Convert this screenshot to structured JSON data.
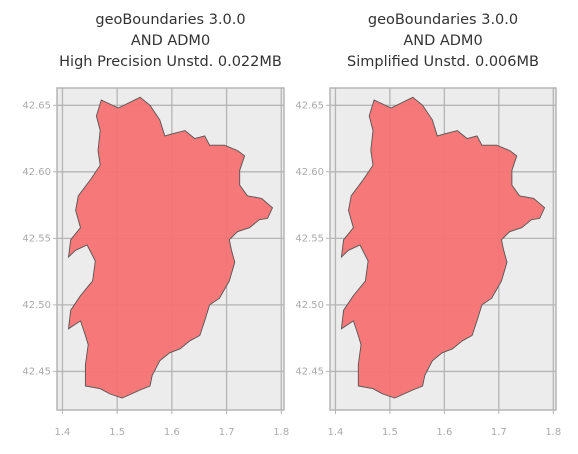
{
  "chart_data": [
    {
      "type": "map",
      "title": [
        "geoBoundaries 3.0.0",
        "AND ADM0",
        "High Precision Unstd. 0.022MB"
      ],
      "xlim": [
        1.39,
        1.805
      ],
      "ylim": [
        42.421,
        42.663
      ],
      "xticks": [
        1.4,
        1.5,
        1.6,
        1.7,
        1.8
      ],
      "yticks": [
        {
          "value": 42.45,
          "label": "42.45"
        },
        {
          "value": 42.5,
          "label": "42.50"
        },
        {
          "value": 42.55,
          "label": "42.55"
        },
        {
          "value": 42.6,
          "label": "42.60"
        },
        {
          "value": 42.65,
          "label": "42.65"
        }
      ],
      "grid": true,
      "color": "#f77272",
      "boundary": {
        "x": [
          1.471,
          1.502,
          1.542,
          1.56,
          1.578,
          1.587,
          1.605,
          1.624,
          1.642,
          1.66,
          1.669,
          1.696,
          1.72,
          1.733,
          1.724,
          1.724,
          1.738,
          1.764,
          1.784,
          1.775,
          1.76,
          1.742,
          1.72,
          1.705,
          1.709,
          1.715,
          1.705,
          1.687,
          1.669,
          1.66,
          1.651,
          1.633,
          1.615,
          1.596,
          1.578,
          1.564,
          1.56,
          1.542,
          1.509,
          1.487,
          1.469,
          1.442,
          1.442,
          1.447,
          1.442,
          1.433,
          1.411,
          1.415,
          1.433,
          1.455,
          1.46,
          1.445,
          1.424,
          1.411,
          1.415,
          1.433,
          1.424,
          1.429,
          1.451,
          1.469,
          1.465,
          1.469,
          1.462
        ],
        "y": [
          42.654,
          42.648,
          42.656,
          42.65,
          42.639,
          42.627,
          42.629,
          42.631,
          42.625,
          42.627,
          42.62,
          42.62,
          42.616,
          42.612,
          42.601,
          42.59,
          42.582,
          42.58,
          42.573,
          42.565,
          42.564,
          42.558,
          42.555,
          42.549,
          42.541,
          42.532,
          42.518,
          42.505,
          42.5,
          42.488,
          42.477,
          42.473,
          42.467,
          42.464,
          42.458,
          42.447,
          42.439,
          42.436,
          42.43,
          42.433,
          42.437,
          42.439,
          42.455,
          42.47,
          42.477,
          42.488,
          42.482,
          42.496,
          42.507,
          42.518,
          42.533,
          42.545,
          42.541,
          42.536,
          42.549,
          42.558,
          42.571,
          42.582,
          42.594,
          42.605,
          42.616,
          42.631,
          42.642
        ]
      }
    },
    {
      "type": "map",
      "title": [
        "geoBoundaries 3.0.0",
        "AND ADM0",
        "Simplified Unstd. 0.006MB"
      ],
      "xlim": [
        1.39,
        1.805
      ],
      "ylim": [
        42.421,
        42.663
      ],
      "xticks": [
        1.4,
        1.5,
        1.6,
        1.7,
        1.8
      ],
      "yticks": [
        {
          "value": 42.45,
          "label": "42.45"
        },
        {
          "value": 42.5,
          "label": "42.50"
        },
        {
          "value": 42.55,
          "label": "42.55"
        },
        {
          "value": 42.6,
          "label": "42.60"
        },
        {
          "value": 42.65,
          "label": "42.65"
        }
      ],
      "grid": true,
      "color": "#f77272",
      "boundary": {
        "x": [
          1.471,
          1.502,
          1.542,
          1.56,
          1.578,
          1.587,
          1.605,
          1.624,
          1.642,
          1.66,
          1.669,
          1.696,
          1.72,
          1.733,
          1.724,
          1.724,
          1.738,
          1.764,
          1.784,
          1.775,
          1.76,
          1.742,
          1.72,
          1.705,
          1.709,
          1.715,
          1.705,
          1.687,
          1.669,
          1.66,
          1.651,
          1.633,
          1.615,
          1.596,
          1.578,
          1.564,
          1.56,
          1.542,
          1.509,
          1.487,
          1.469,
          1.442,
          1.442,
          1.447,
          1.442,
          1.433,
          1.411,
          1.415,
          1.433,
          1.455,
          1.46,
          1.445,
          1.424,
          1.411,
          1.415,
          1.433,
          1.424,
          1.429,
          1.451,
          1.469,
          1.465,
          1.469,
          1.462
        ],
        "y": [
          42.654,
          42.648,
          42.656,
          42.65,
          42.639,
          42.627,
          42.629,
          42.631,
          42.625,
          42.627,
          42.62,
          42.62,
          42.616,
          42.612,
          42.601,
          42.59,
          42.582,
          42.58,
          42.573,
          42.565,
          42.564,
          42.558,
          42.555,
          42.549,
          42.541,
          42.532,
          42.518,
          42.505,
          42.5,
          42.488,
          42.477,
          42.473,
          42.467,
          42.464,
          42.458,
          42.447,
          42.439,
          42.436,
          42.43,
          42.433,
          42.437,
          42.439,
          42.455,
          42.47,
          42.477,
          42.488,
          42.482,
          42.496,
          42.507,
          42.518,
          42.533,
          42.545,
          42.541,
          42.536,
          42.549,
          42.558,
          42.571,
          42.582,
          42.594,
          42.605,
          42.616,
          42.631,
          42.642
        ]
      }
    }
  ]
}
